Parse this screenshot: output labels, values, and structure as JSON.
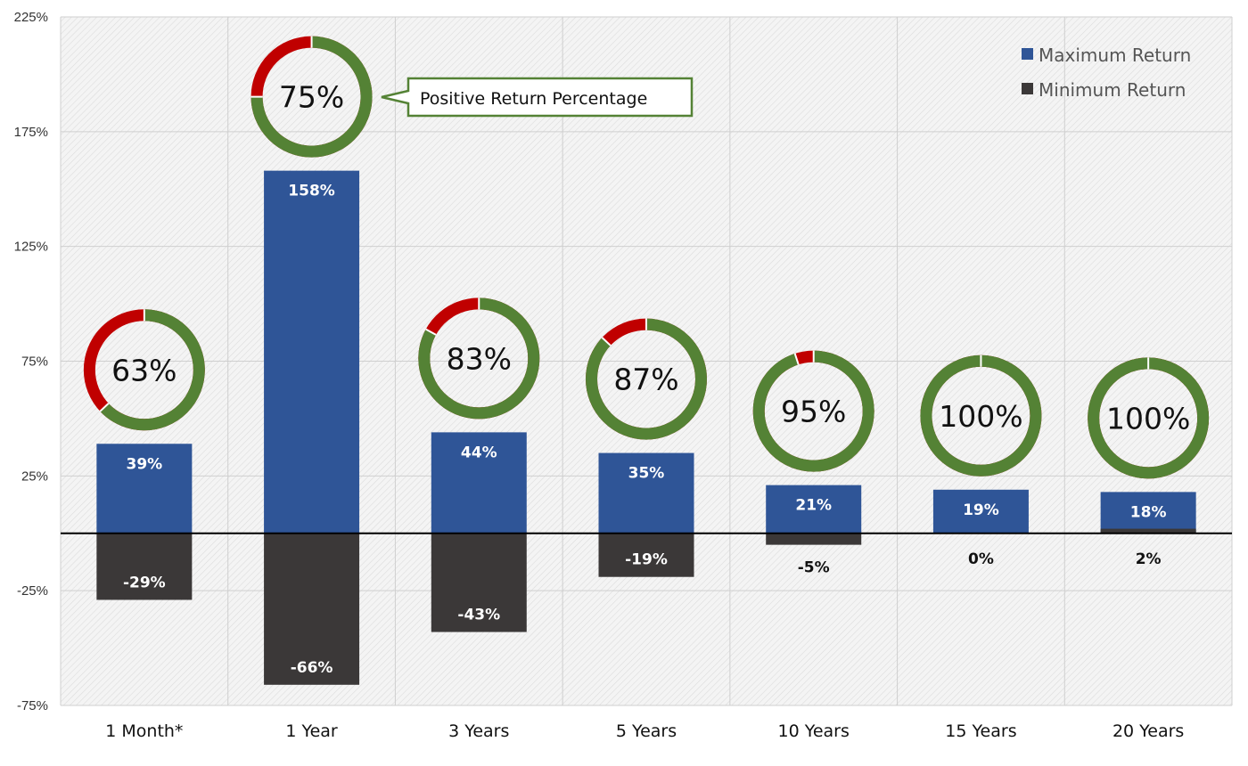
{
  "chart_data": {
    "type": "bar",
    "categories": [
      "1 Month*",
      "1 Year",
      "3 Years",
      "5 Years",
      "10 Years",
      "15 Years",
      "20 Years"
    ],
    "series": [
      {
        "name": "Maximum Return",
        "values": [
          39,
          158,
          44,
          35,
          21,
          19,
          18
        ],
        "labels": [
          "39%",
          "158%",
          "44%",
          "35%",
          "21%",
          "19%",
          "18%"
        ]
      },
      {
        "name": "Minimum Return",
        "values": [
          -29,
          -66,
          -43,
          -19,
          -5,
          0,
          2
        ],
        "labels": [
          "-29%",
          "-66%",
          "-43%",
          "-19%",
          "-5%",
          "0%",
          "2%"
        ]
      }
    ],
    "positive_return_percentage": {
      "values": [
        63,
        75,
        83,
        87,
        95,
        100,
        100
      ],
      "labels": [
        "63%",
        "75%",
        "83%",
        "87%",
        "95%",
        "100%",
        "100%"
      ]
    },
    "callout": "Positive Return Percentage",
    "y_ticks": [
      "225%",
      "175%",
      "125%",
      "75%",
      "25%",
      "-25%",
      "-75%"
    ],
    "y_tick_values": [
      225,
      175,
      125,
      75,
      25,
      -25,
      -75
    ],
    "ylim": [
      -75,
      225
    ],
    "grid": true,
    "legend_position": "top-right",
    "colors": {
      "max": "#2f5597",
      "min": "#3b3838",
      "positive": "#548235",
      "negative": "#c00000"
    }
  }
}
